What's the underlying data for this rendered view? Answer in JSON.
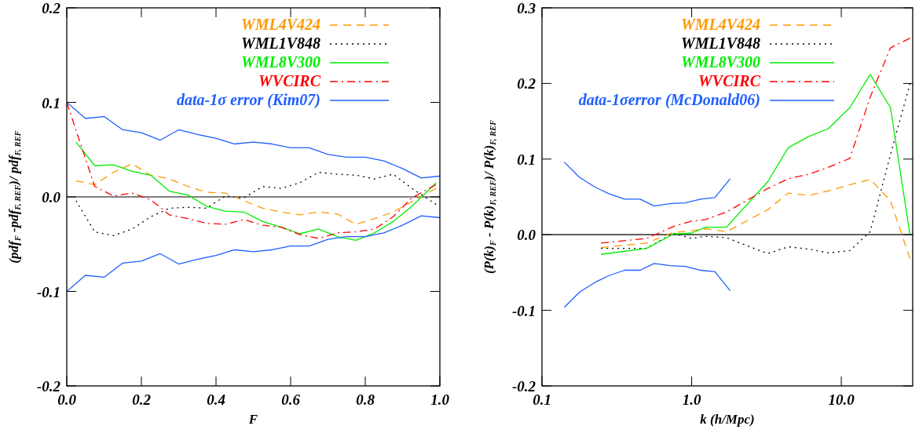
{
  "chart_data": [
    {
      "type": "line",
      "xlabel": "F",
      "ylabel": "(pdf$_{F}$ -pdf$_{F, REF}$)/ pdf$_{F, REF}$",
      "xlim": [
        0,
        1
      ],
      "ylim": [
        -0.2,
        0.2
      ],
      "xticks": [
        {
          "value": 0,
          "label": "0.0"
        },
        {
          "value": 0.2,
          "label": "0.2"
        },
        {
          "value": 0.4,
          "label": "0.4"
        },
        {
          "value": 0.6,
          "label": "0.6"
        },
        {
          "value": 0.8,
          "label": "0.8"
        },
        {
          "value": 1,
          "label": "1.0"
        }
      ],
      "yticks": [
        {
          "value": -0.2,
          "label": "-0.2"
        },
        {
          "value": -0.1,
          "label": "-0.1"
        },
        {
          "value": 0,
          "label": "0.0"
        },
        {
          "value": 0.1,
          "label": "0.1"
        },
        {
          "value": 0.2,
          "label": "0.2"
        }
      ],
      "grid": false,
      "legend": "top right",
      "marker": "none",
      "ref_lines": [
        {
          "axis": "y",
          "value": 0,
          "color": "#555555"
        }
      ],
      "series": [
        {
          "name": "WML4V424",
          "color": "#ff9900",
          "line_style": "dashed",
          "x": [
            0.025,
            0.075,
            0.125,
            0.175,
            0.225,
            0.275,
            0.325,
            0.375,
            0.425,
            0.475,
            0.525,
            0.575,
            0.625,
            0.675,
            0.725,
            0.775,
            0.825,
            0.875,
            0.925,
            0.99
          ],
          "values": [
            0.017,
            0.013,
            0.026,
            0.035,
            0.023,
            0.019,
            0.011,
            0.005,
            0.004,
            -0.004,
            -0.012,
            -0.016,
            -0.019,
            -0.016,
            -0.018,
            -0.029,
            -0.023,
            -0.016,
            -0.005,
            0.009
          ]
        },
        {
          "name": "WML1V848",
          "color": "#000000",
          "line_style": "dotted",
          "x": [
            0.025,
            0.075,
            0.125,
            0.175,
            0.225,
            0.275,
            0.325,
            0.375,
            0.425,
            0.475,
            0.525,
            0.575,
            0.625,
            0.675,
            0.725,
            0.775,
            0.825,
            0.875,
            0.925,
            0.99
          ],
          "values": [
            -0.004,
            -0.037,
            -0.041,
            -0.034,
            -0.021,
            -0.012,
            -0.011,
            -0.012,
            0.001,
            -0.001,
            0.011,
            0.009,
            0.015,
            0.026,
            0.024,
            0.023,
            0.019,
            0.024,
            0.009,
            -0.008
          ]
        },
        {
          "name": "WML8V300",
          "color": "#00ee00",
          "line_style": "solid",
          "x": [
            0.025,
            0.075,
            0.125,
            0.175,
            0.225,
            0.275,
            0.325,
            0.375,
            0.425,
            0.475,
            0.525,
            0.575,
            0.625,
            0.675,
            0.725,
            0.775,
            0.825,
            0.875,
            0.925,
            0.99
          ],
          "values": [
            0.058,
            0.033,
            0.034,
            0.027,
            0.023,
            0.006,
            0.002,
            -0.01,
            -0.015,
            -0.016,
            -0.026,
            -0.032,
            -0.039,
            -0.034,
            -0.042,
            -0.046,
            -0.038,
            -0.026,
            -0.01,
            0.015
          ]
        },
        {
          "name": "WVCIRC",
          "color": "#ff0000",
          "line_style": "dashdot",
          "x": [
            0,
            0.075,
            0.125,
            0.175,
            0.225,
            0.275,
            0.325,
            0.375,
            0.425,
            0.475,
            0.525,
            0.575,
            0.625,
            0.675,
            0.725,
            0.775,
            0.825,
            0.875,
            0.925,
            0.99
          ],
          "values": [
            0.1,
            0.011,
            0.001,
            0.004,
            -0.003,
            -0.019,
            -0.023,
            -0.028,
            -0.029,
            -0.024,
            -0.03,
            -0.032,
            -0.04,
            -0.044,
            -0.038,
            -0.037,
            -0.034,
            -0.021,
            -0.001,
            0.013
          ]
        },
        {
          "name": "data-1σ error (Kim07)",
          "color": "#1f5fff",
          "line_style": "solid",
          "x": [
            0,
            0.05,
            0.1,
            0.15,
            0.2,
            0.25,
            0.3,
            0.35,
            0.4,
            0.45,
            0.5,
            0.55,
            0.6,
            0.65,
            0.7,
            0.75,
            0.8,
            0.85,
            0.9,
            0.95,
            1
          ],
          "values": [
            0.1,
            0.083,
            0.085,
            0.071,
            0.068,
            0.06,
            0.071,
            0.066,
            0.062,
            0.056,
            0.058,
            0.056,
            0.052,
            0.052,
            0.045,
            0.042,
            0.042,
            0.038,
            0.03,
            0.02,
            0.022
          ]
        },
        {
          "color": "#1f5fff",
          "line_style": "solid",
          "x": [
            0,
            0.05,
            0.1,
            0.15,
            0.2,
            0.25,
            0.3,
            0.35,
            0.4,
            0.45,
            0.5,
            0.55,
            0.6,
            0.65,
            0.7,
            0.75,
            0.8,
            0.85,
            0.9,
            0.95,
            1
          ],
          "values": [
            -0.1,
            -0.083,
            -0.085,
            -0.07,
            -0.068,
            -0.06,
            -0.071,
            -0.066,
            -0.062,
            -0.056,
            -0.058,
            -0.056,
            -0.052,
            -0.052,
            -0.045,
            -0.042,
            -0.042,
            -0.038,
            -0.03,
            -0.02,
            -0.022
          ]
        }
      ]
    },
    {
      "type": "line",
      "xlabel": "k (h/Mpc)",
      "ylabel": "(P(k)$_{F}$ - P(k)$_{F, REF}$)/ P(k)$_{F, REF}$",
      "log": "x",
      "xlim": [
        0.1,
        30
      ],
      "ylim": [
        -0.2,
        0.3
      ],
      "xticks": [
        {
          "value": 0.1,
          "label": "0.1"
        },
        {
          "value": 1,
          "label": "1.0"
        },
        {
          "value": 10,
          "label": "10.0"
        }
      ],
      "yticks": [
        {
          "value": -0.2,
          "label": "-0.2"
        },
        {
          "value": -0.1,
          "label": "-0.1"
        },
        {
          "value": 0,
          "label": "0.0"
        },
        {
          "value": 0.1,
          "label": "0.1"
        },
        {
          "value": 0.2,
          "label": "0.2"
        },
        {
          "value": 0.3,
          "label": "0.3"
        }
      ],
      "grid": false,
      "legend": "top left",
      "marker": "none",
      "ref_lines": [
        {
          "axis": "y",
          "value": 0,
          "color": "#000000"
        }
      ],
      "series": [
        {
          "name": "WML4V424",
          "color": "#ff9900",
          "line_style": "dashed",
          "x": [
            0.248,
            0.5,
            0.757,
            1,
            1.24,
            1.71,
            3.22,
            4.42,
            6.06,
            8.17,
            11.4,
            15.6,
            21.3,
            28.8
          ],
          "values": [
            -0.017,
            -0.011,
            0.003,
            0.005,
            0.008,
            0.004,
            0.033,
            0.055,
            0.052,
            0.058,
            0.066,
            0.073,
            0.045,
            -0.032
          ]
        },
        {
          "name": "WML1V848",
          "color": "#000000",
          "line_style": "dotted",
          "x": [
            0.248,
            0.5,
            0.757,
            1,
            1.24,
            1.71,
            3.22,
            4.42,
            6.06,
            8.17,
            11.4,
            15.6,
            21.3,
            28.8
          ],
          "values": [
            -0.018,
            -0.018,
            0.002,
            -0.005,
            -0.002,
            -0.004,
            -0.025,
            -0.016,
            -0.019,
            -0.024,
            -0.021,
            0.004,
            0.106,
            0.2
          ]
        },
        {
          "name": "WML8V300",
          "color": "#00ee00",
          "line_style": "solid",
          "x": [
            0.248,
            0.5,
            0.757,
            1,
            1.24,
            1.71,
            3.22,
            4.42,
            6.06,
            8.17,
            11.4,
            15.6,
            21.3,
            28.8
          ],
          "values": [
            -0.026,
            -0.018,
            0.001,
            0.002,
            0.01,
            0.01,
            0.07,
            0.115,
            0.13,
            0.14,
            0.168,
            0.212,
            0.168,
            -0.001
          ]
        },
        {
          "name": "WVCIRC",
          "color": "#ff0000",
          "line_style": "dashdot",
          "x": [
            0.248,
            0.5,
            0.757,
            1,
            1.24,
            1.71,
            3.22,
            4.42,
            6.06,
            8.17,
            11.4,
            15.6,
            21.3,
            28.8
          ],
          "values": [
            -0.011,
            -0.005,
            0.011,
            0.018,
            0.02,
            0.03,
            0.061,
            0.074,
            0.08,
            0.089,
            0.101,
            0.182,
            0.247,
            0.26
          ]
        },
        {
          "name": "data-1σerror (McDonald06)",
          "color": "#1f5fff",
          "line_style": "solid",
          "x": [
            0.141,
            0.178,
            0.226,
            0.281,
            0.357,
            0.453,
            0.562,
            0.713,
            0.906,
            1.148,
            1.43,
            1.81
          ],
          "values": [
            0.096,
            0.076,
            0.063,
            0.054,
            0.047,
            0.047,
            0.038,
            0.041,
            0.042,
            0.047,
            0.049,
            0.074
          ]
        },
        {
          "color": "#1f5fff",
          "line_style": "solid",
          "x": [
            0.141,
            0.178,
            0.226,
            0.281,
            0.357,
            0.453,
            0.562,
            0.713,
            0.906,
            1.148,
            1.43,
            1.81
          ],
          "values": [
            -0.096,
            -0.076,
            -0.063,
            -0.054,
            -0.047,
            -0.047,
            -0.038,
            -0.041,
            -0.042,
            -0.047,
            -0.049,
            -0.074
          ]
        }
      ]
    }
  ]
}
